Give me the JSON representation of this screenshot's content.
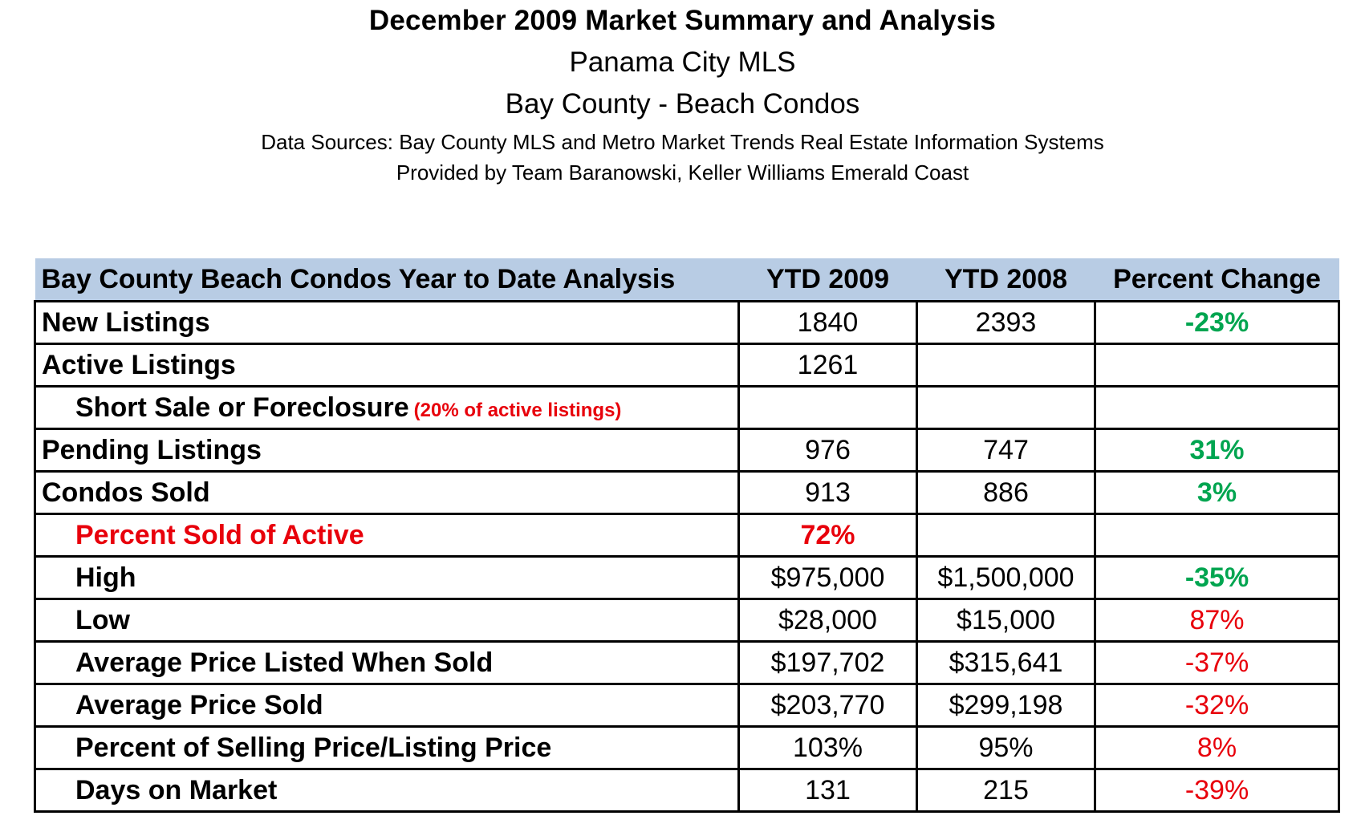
{
  "header": {
    "title": "December 2009 Market Summary and Analysis",
    "subtitle1": "Panama City MLS",
    "subtitle2": "Bay County - Beach Condos",
    "source1": "Data Sources: Bay County MLS and Metro Market Trends Real Estate Information Systems",
    "source2": "Provided by Team Baranowski, Keller Williams Emerald Coast"
  },
  "table": {
    "headers": [
      "Bay County Beach Condos Year to Date Analysis",
      "YTD 2009",
      "YTD 2008",
      "Percent Change"
    ],
    "rows": [
      {
        "label": "New Listings",
        "note": "",
        "ytd2009": "1840",
        "ytd2008": "2393",
        "change": "-23%"
      },
      {
        "label": "Active Listings",
        "note": "",
        "ytd2009": "1261",
        "ytd2008": "",
        "change": ""
      },
      {
        "label": "Short Sale or Foreclosure",
        "note": "(20% of active listings)",
        "ytd2009": "",
        "ytd2008": "",
        "change": ""
      },
      {
        "label": "Pending Listings",
        "note": "",
        "ytd2009": "976",
        "ytd2008": "747",
        "change": "31%"
      },
      {
        "label": "Condos Sold",
        "note": "",
        "ytd2009": "913",
        "ytd2008": "886",
        "change": "3%"
      },
      {
        "label": "Percent Sold of Active",
        "note": "",
        "ytd2009": "72%",
        "ytd2008": "",
        "change": ""
      },
      {
        "label": "High",
        "note": "",
        "ytd2009": "$975,000",
        "ytd2008": "$1,500,000",
        "change": "-35%"
      },
      {
        "label": "Low",
        "note": "",
        "ytd2009": "$28,000",
        "ytd2008": "$15,000",
        "change": "87%"
      },
      {
        "label": "Average Price Listed When Sold",
        "note": "",
        "ytd2009": "$197,702",
        "ytd2008": "$315,641",
        "change": "-37%"
      },
      {
        "label": "Average Price Sold",
        "note": "",
        "ytd2009": "$203,770",
        "ytd2008": "$299,198",
        "change": "-32%"
      },
      {
        "label": "Percent of Selling Price/Listing Price",
        "note": "",
        "ytd2009": "103%",
        "ytd2008": "95%",
        "change": "8%"
      },
      {
        "label": "Days on Market",
        "note": "",
        "ytd2009": "131",
        "ytd2008": "215",
        "change": "-39%"
      }
    ]
  },
  "colors": {
    "header_bg": "#b8cce4",
    "positive_green": "#00a550",
    "negative_red": "#e8000b"
  }
}
